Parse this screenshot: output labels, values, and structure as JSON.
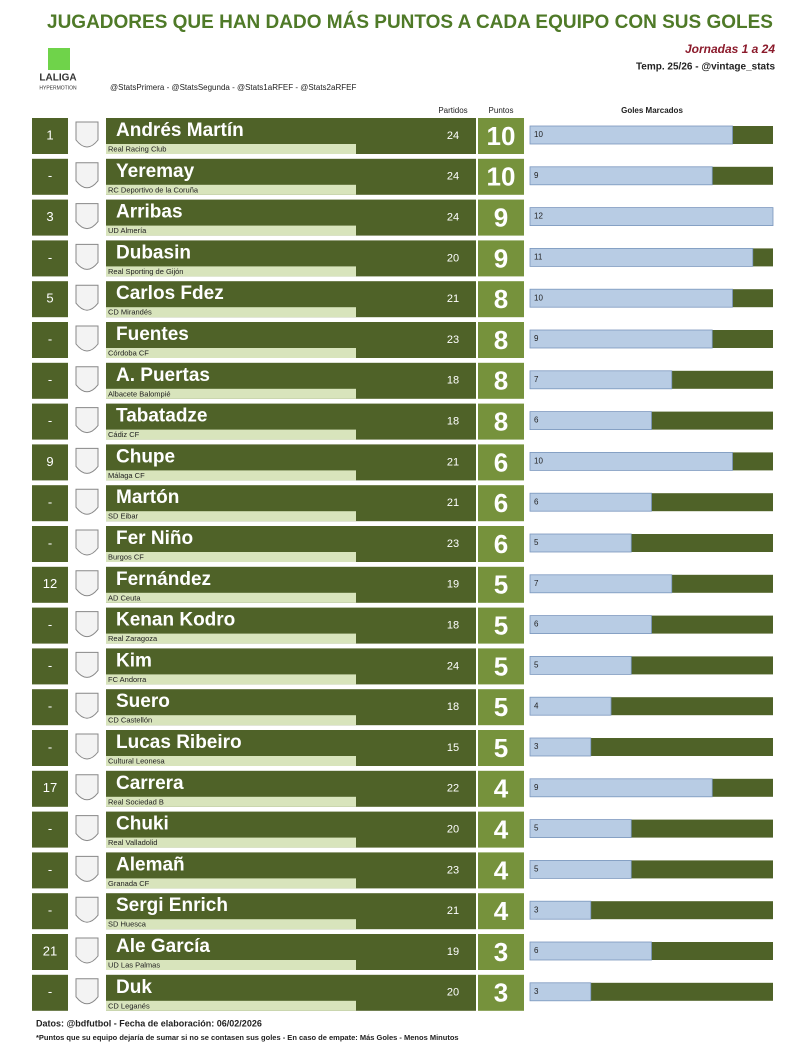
{
  "header": {
    "title": "JUGADORES QUE HAN DADO MÁS PUNTOS A CADA EQUIPO CON SUS GOLES",
    "logo_top": "LALIGA",
    "logo_bottom": "HYPERMOTION",
    "jornadas": "Jornadas 1 a 24",
    "season": "Temp. 25/26 - @vintage_stats",
    "accounts": "@StatsPrimera - @StatsSegunda - @Stats1aRFEF - @Stats2aRFEF"
  },
  "columns": {
    "partidos": "Partidos",
    "puntos": "Puntos",
    "goles": "Goles Marcados"
  },
  "rows": [
    {
      "rank": "1",
      "name": "Andrés Martín",
      "team": "Real Racing Club",
      "partidos": 24,
      "puntos": 10,
      "goles": 10
    },
    {
      "rank": "-",
      "name": "Yeremay",
      "team": "RC Deportivo de la Coruña",
      "partidos": 24,
      "puntos": 10,
      "goles": 9
    },
    {
      "rank": "3",
      "name": "Arribas",
      "team": "UD Almería",
      "partidos": 24,
      "puntos": 9,
      "goles": 12
    },
    {
      "rank": "-",
      "name": "Dubasin",
      "team": "Real Sporting de Gijón",
      "partidos": 20,
      "puntos": 9,
      "goles": 11
    },
    {
      "rank": "5",
      "name": "Carlos Fdez",
      "team": "CD Mirandés",
      "partidos": 21,
      "puntos": 8,
      "goles": 10
    },
    {
      "rank": "-",
      "name": "Fuentes",
      "team": "Córdoba CF",
      "partidos": 23,
      "puntos": 8,
      "goles": 9
    },
    {
      "rank": "-",
      "name": "A. Puertas",
      "team": "Albacete Balompié",
      "partidos": 18,
      "puntos": 8,
      "goles": 7
    },
    {
      "rank": "-",
      "name": "Tabatadze",
      "team": "Cádiz CF",
      "partidos": 18,
      "puntos": 8,
      "goles": 6
    },
    {
      "rank": "9",
      "name": "Chupe",
      "team": "Málaga CF",
      "partidos": 21,
      "puntos": 6,
      "goles": 10
    },
    {
      "rank": "-",
      "name": "Martón",
      "team": "SD Eibar",
      "partidos": 21,
      "puntos": 6,
      "goles": 6
    },
    {
      "rank": "-",
      "name": "Fer Niño",
      "team": "Burgos CF",
      "partidos": 23,
      "puntos": 6,
      "goles": 5
    },
    {
      "rank": "12",
      "name": "Fernández",
      "team": "AD Ceuta",
      "partidos": 19,
      "puntos": 5,
      "goles": 7
    },
    {
      "rank": "-",
      "name": "Kenan Kodro",
      "team": "Real Zaragoza",
      "partidos": 18,
      "puntos": 5,
      "goles": 6
    },
    {
      "rank": "-",
      "name": "Kim",
      "team": "FC Andorra",
      "partidos": 24,
      "puntos": 5,
      "goles": 5
    },
    {
      "rank": "-",
      "name": "Suero",
      "team": "CD Castellón",
      "partidos": 18,
      "puntos": 5,
      "goles": 4
    },
    {
      "rank": "-",
      "name": "Lucas Ribeiro",
      "team": "Cultural Leonesa",
      "partidos": 15,
      "puntos": 5,
      "goles": 3
    },
    {
      "rank": "17",
      "name": "Carrera",
      "team": "Real Sociedad B",
      "partidos": 22,
      "puntos": 4,
      "goles": 9
    },
    {
      "rank": "-",
      "name": "Chuki",
      "team": "Real Valladolid",
      "partidos": 20,
      "puntos": 4,
      "goles": 5
    },
    {
      "rank": "-",
      "name": "Alemañ",
      "team": "Granada CF",
      "partidos": 23,
      "puntos": 4,
      "goles": 5
    },
    {
      "rank": "-",
      "name": "Sergi Enrich",
      "team": "SD Huesca",
      "partidos": 21,
      "puntos": 4,
      "goles": 3
    },
    {
      "rank": "21",
      "name": "Ale García",
      "team": "UD Las Palmas",
      "partidos": 19,
      "puntos": 3,
      "goles": 6
    },
    {
      "rank": "-",
      "name": "Duk",
      "team": "CD Leganés",
      "partidos": 20,
      "puntos": 3,
      "goles": 3
    }
  ],
  "footer": {
    "source": "Datos: @bdfutbol - Fecha de elaboración: 06/02/2026",
    "note": "*Puntos que su equipo dejaría de sumar si no se contasen sus goles - En caso de empate: Más Goles - Menos Minutos"
  }
}
